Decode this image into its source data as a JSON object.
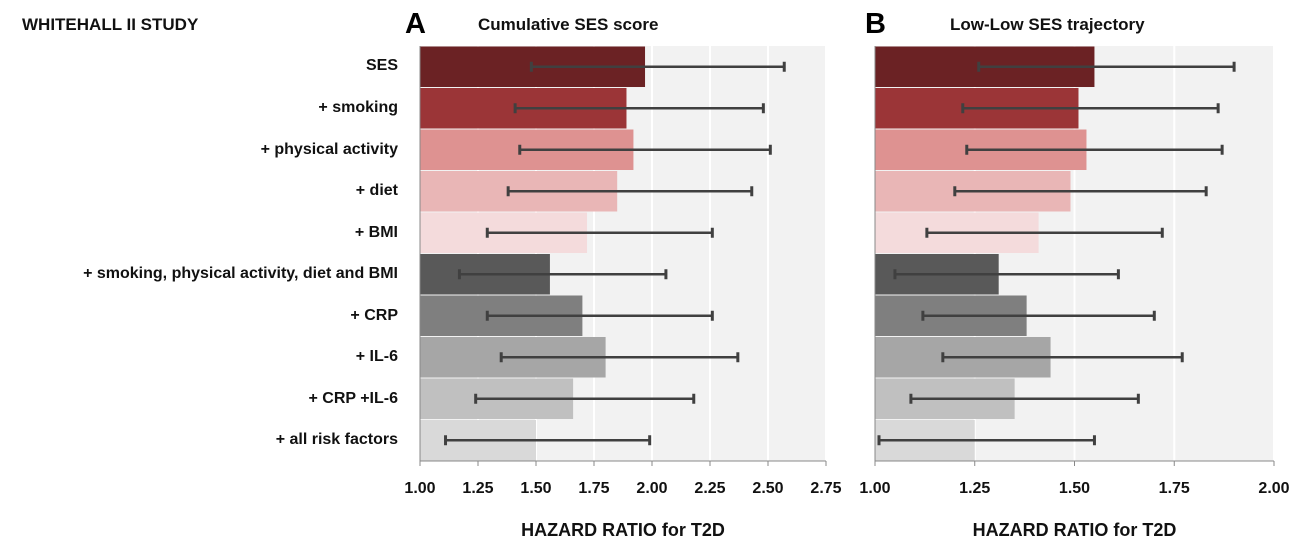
{
  "study_title": "WHITEHALL II STUDY",
  "row_labels": [
    "SES",
    "+ smoking",
    "+ physical activity",
    "+ diet",
    "+ BMI",
    "+ smoking, physical activity, diet and BMI",
    "+ CRP",
    "+ IL-6",
    "+ CRP +IL-6",
    "+ all risk factors"
  ],
  "bar_colors": [
    "#6b2224",
    "#9b3537",
    "#de9291",
    "#e9b6b6",
    "#f4dbdc",
    "#595959",
    "#7f7f7f",
    "#a6a6a6",
    "#c0c0c0",
    "#d9d9d9"
  ],
  "chart_data": [
    {
      "type": "bar",
      "orientation": "horizontal",
      "panel_letter": "A",
      "title": "Cumulative SES score",
      "xlabel": "HAZARD RATIO for T2D",
      "xlim": [
        1.0,
        2.75
      ],
      "xticks": [
        "1.00",
        "1.25",
        "1.50",
        "1.75",
        "2.00",
        "2.25",
        "2.50",
        "2.75"
      ],
      "grid": true,
      "categories": [
        "SES",
        "+ smoking",
        "+ physical activity",
        "+ diet",
        "+ BMI",
        "+ smoking, physical activity, diet and BMI",
        "+ CRP",
        "+ IL-6",
        "+ CRP +IL-6",
        "+ all risk factors"
      ],
      "values": [
        1.97,
        1.89,
        1.92,
        1.85,
        1.72,
        1.56,
        1.7,
        1.8,
        1.66,
        1.5
      ],
      "ci_lower": [
        1.48,
        1.41,
        1.43,
        1.38,
        1.29,
        1.17,
        1.29,
        1.35,
        1.24,
        1.11
      ],
      "ci_upper": [
        2.57,
        2.48,
        2.51,
        2.43,
        2.26,
        2.06,
        2.26,
        2.37,
        2.18,
        1.99
      ]
    },
    {
      "type": "bar",
      "orientation": "horizontal",
      "panel_letter": "B",
      "title": "Low-Low SES trajectory",
      "xlabel": "HAZARD RATIO for T2D",
      "xlim": [
        1.0,
        2.0
      ],
      "xticks": [
        "1.00",
        "1.25",
        "1.50",
        "1.75",
        "2.00"
      ],
      "grid": true,
      "categories": [
        "SES",
        "+ smoking",
        "+ physical activity",
        "+ diet",
        "+ BMI",
        "+ smoking, physical activity, diet and BMI",
        "+ CRP",
        "+ IL-6",
        "+ CRP +IL-6",
        "+ all risk factors"
      ],
      "values": [
        1.55,
        1.51,
        1.53,
        1.49,
        1.41,
        1.31,
        1.38,
        1.44,
        1.35,
        1.25
      ],
      "ci_lower": [
        1.26,
        1.22,
        1.23,
        1.2,
        1.13,
        1.05,
        1.12,
        1.17,
        1.09,
        1.01
      ],
      "ci_upper": [
        1.9,
        1.86,
        1.87,
        1.83,
        1.72,
        1.61,
        1.7,
        1.77,
        1.66,
        1.55
      ]
    }
  ]
}
